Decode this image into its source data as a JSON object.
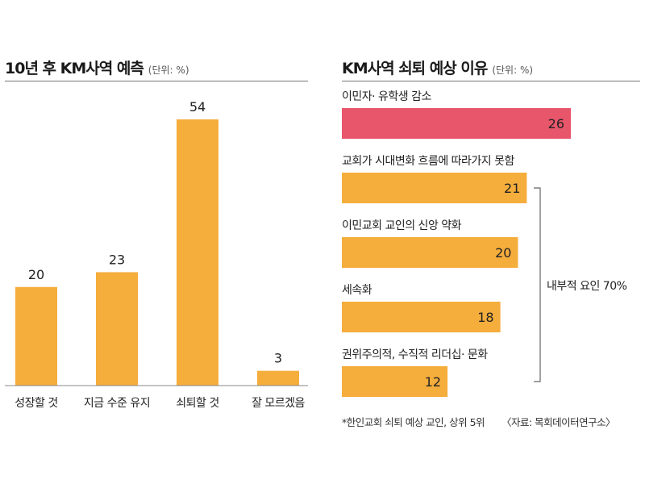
{
  "chart_data": [
    {
      "type": "bar",
      "title": "10년 후 KM사역 예측",
      "unit": "(단위: %)",
      "categories": [
        "성장할 것",
        "지금 수준 유지",
        "쇠퇴할 것",
        "잘 모르겠음"
      ],
      "values": [
        20,
        23,
        54,
        3
      ],
      "ylim": [
        0,
        60
      ],
      "bar_color": "#F5AD3C"
    },
    {
      "type": "bar",
      "orientation": "horizontal",
      "title": "KM사역 쇠퇴 예상 이유",
      "unit": "(단위: %)",
      "categories": [
        "이민자· 유학생 감소",
        "교회가 시대변화 흐름에 따라가지 못함",
        "이민교회 교인의 신앙 약화",
        "세속화",
        "권위주의적, 수직적 리더십· 문화"
      ],
      "values": [
        26,
        21,
        20,
        18,
        12
      ],
      "xlim": [
        0,
        28
      ],
      "bar_colors": [
        "#E8566B",
        "#F5AD3C",
        "#F5AD3C",
        "#F5AD3C",
        "#F5AD3C"
      ],
      "annotation": "내부적 요인 70%",
      "footnote": "*한인교회 쇠퇴 예상 교인, 상위 5위",
      "source": "〈자료: 목회데이터연구소〉"
    }
  ]
}
